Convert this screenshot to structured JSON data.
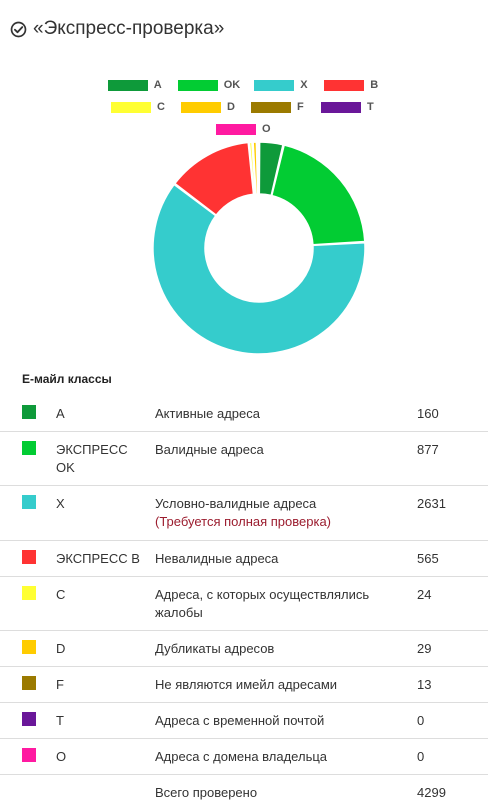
{
  "header": {
    "title": "«Экспресс-проверка»"
  },
  "colors": {
    "A": "#0e9a3a",
    "OK": "#02cc33",
    "X": "#35cccc",
    "B": "#ff3333",
    "C": "#ffff33",
    "D": "#ffcc00",
    "F": "#9b7a00",
    "T": "#6a1799",
    "O": "#ff1aa1"
  },
  "legend": [
    {
      "label": "A",
      "color": "#0e9a3a"
    },
    {
      "label": "OK",
      "color": "#02cc33"
    },
    {
      "label": "X",
      "color": "#35cccc"
    },
    {
      "label": "B",
      "color": "#ff3333"
    },
    {
      "label": "C",
      "color": "#ffff33"
    },
    {
      "label": "D",
      "color": "#ffcc00"
    },
    {
      "label": "F",
      "color": "#9b7a00"
    },
    {
      "label": "T",
      "color": "#6a1799"
    },
    {
      "label": "O",
      "color": "#ff1aa1"
    }
  ],
  "chart_data": {
    "type": "pie",
    "donut": true,
    "title": "",
    "categories": [
      "A",
      "OK",
      "X",
      "B",
      "C",
      "D",
      "F",
      "T",
      "O"
    ],
    "values": [
      160,
      877,
      2631,
      565,
      24,
      29,
      13,
      0,
      0
    ],
    "colors": [
      "#0e9a3a",
      "#02cc33",
      "#35cccc",
      "#ff3333",
      "#ffff33",
      "#ffcc00",
      "#9b7a00",
      "#6a1799",
      "#ff1aa1"
    ],
    "legend_position": "top"
  },
  "table": {
    "title": "E-майл классы",
    "rows": [
      {
        "code": "A",
        "description": "Активные адреса",
        "note": "",
        "count": "160",
        "color": "#0e9a3a"
      },
      {
        "code": "ЭКСПРЕСС OK",
        "description": "Валидные адреса",
        "note": "",
        "count": "877",
        "color": "#02cc33"
      },
      {
        "code": "X",
        "description": "Условно-валидные адреса",
        "note": "(Требуется полная проверка)",
        "count": "2631",
        "color": "#35cccc"
      },
      {
        "code": "ЭКСПРЕСС B",
        "description": "Невалидные адреса",
        "note": "",
        "count": "565",
        "color": "#ff3333"
      },
      {
        "code": "C",
        "description": "Адреса, с которых осуществлялись жалобы",
        "note": "",
        "count": "24",
        "color": "#ffff33"
      },
      {
        "code": "D",
        "description": "Дубликаты адресов",
        "note": "",
        "count": "29",
        "color": "#ffcc00"
      },
      {
        "code": "F",
        "description": "Не являются имейл адресами",
        "note": "",
        "count": "13",
        "color": "#9b7a00"
      },
      {
        "code": "T",
        "description": "Адреса с временной почтой",
        "note": "",
        "count": "0",
        "color": "#6a1799"
      },
      {
        "code": "O",
        "description": "Адреса с домена владельца",
        "note": "",
        "count": "0",
        "color": "#ff1aa1"
      }
    ],
    "total": {
      "description": "Всего проверено",
      "count": "4299"
    }
  }
}
